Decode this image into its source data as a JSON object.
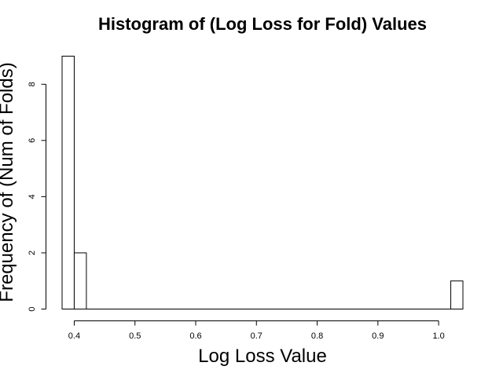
{
  "chart_data": {
    "type": "bar",
    "title": "Histogram of (Log Loss for Fold) Values",
    "xlabel": "Log Loss Value",
    "ylabel": "Frequency of (Num of Folds)",
    "xlim": [
      0.38,
      1.04
    ],
    "ylim": [
      0,
      9
    ],
    "x_ticks": [
      0.4,
      0.5,
      0.6,
      0.7,
      0.8,
      0.9,
      1.0
    ],
    "x_tick_labels": [
      "0.4",
      "0.5",
      "0.6",
      "0.7",
      "0.8",
      "0.9",
      "1.0"
    ],
    "y_ticks": [
      0,
      2,
      4,
      6,
      8
    ],
    "y_tick_labels": [
      "0",
      "2",
      "4",
      "6",
      "8"
    ],
    "bin_width": 0.02,
    "bins": [
      {
        "start": 0.38,
        "end": 0.4,
        "count": 9
      },
      {
        "start": 0.4,
        "end": 0.42,
        "count": 2
      },
      {
        "start": 0.42,
        "end": 0.44,
        "count": 0
      },
      {
        "start": 0.44,
        "end": 0.46,
        "count": 0
      },
      {
        "start": 0.46,
        "end": 0.48,
        "count": 0
      },
      {
        "start": 0.48,
        "end": 0.5,
        "count": 0
      },
      {
        "start": 0.5,
        "end": 0.52,
        "count": 0
      },
      {
        "start": 0.52,
        "end": 0.54,
        "count": 0
      },
      {
        "start": 0.54,
        "end": 0.56,
        "count": 0
      },
      {
        "start": 0.56,
        "end": 0.58,
        "count": 0
      },
      {
        "start": 0.58,
        "end": 0.6,
        "count": 0
      },
      {
        "start": 0.6,
        "end": 0.62,
        "count": 0
      },
      {
        "start": 0.62,
        "end": 0.64,
        "count": 0
      },
      {
        "start": 0.64,
        "end": 0.66,
        "count": 0
      },
      {
        "start": 0.66,
        "end": 0.68,
        "count": 0
      },
      {
        "start": 0.68,
        "end": 0.7,
        "count": 0
      },
      {
        "start": 0.7,
        "end": 0.72,
        "count": 0
      },
      {
        "start": 0.72,
        "end": 0.74,
        "count": 0
      },
      {
        "start": 0.74,
        "end": 0.76,
        "count": 0
      },
      {
        "start": 0.76,
        "end": 0.78,
        "count": 0
      },
      {
        "start": 0.78,
        "end": 0.8,
        "count": 0
      },
      {
        "start": 0.8,
        "end": 0.82,
        "count": 0
      },
      {
        "start": 0.82,
        "end": 0.84,
        "count": 0
      },
      {
        "start": 0.84,
        "end": 0.86,
        "count": 0
      },
      {
        "start": 0.86,
        "end": 0.88,
        "count": 0
      },
      {
        "start": 0.88,
        "end": 0.9,
        "count": 0
      },
      {
        "start": 0.9,
        "end": 0.92,
        "count": 0
      },
      {
        "start": 0.92,
        "end": 0.94,
        "count": 0
      },
      {
        "start": 0.94,
        "end": 0.96,
        "count": 0
      },
      {
        "start": 0.96,
        "end": 0.98,
        "count": 0
      },
      {
        "start": 0.98,
        "end": 1.0,
        "count": 0
      },
      {
        "start": 1.0,
        "end": 1.02,
        "count": 0
      },
      {
        "start": 1.02,
        "end": 1.04,
        "count": 1
      }
    ],
    "bar_fill": "#ffffff",
    "bar_stroke": "#000000",
    "grid": false
  }
}
